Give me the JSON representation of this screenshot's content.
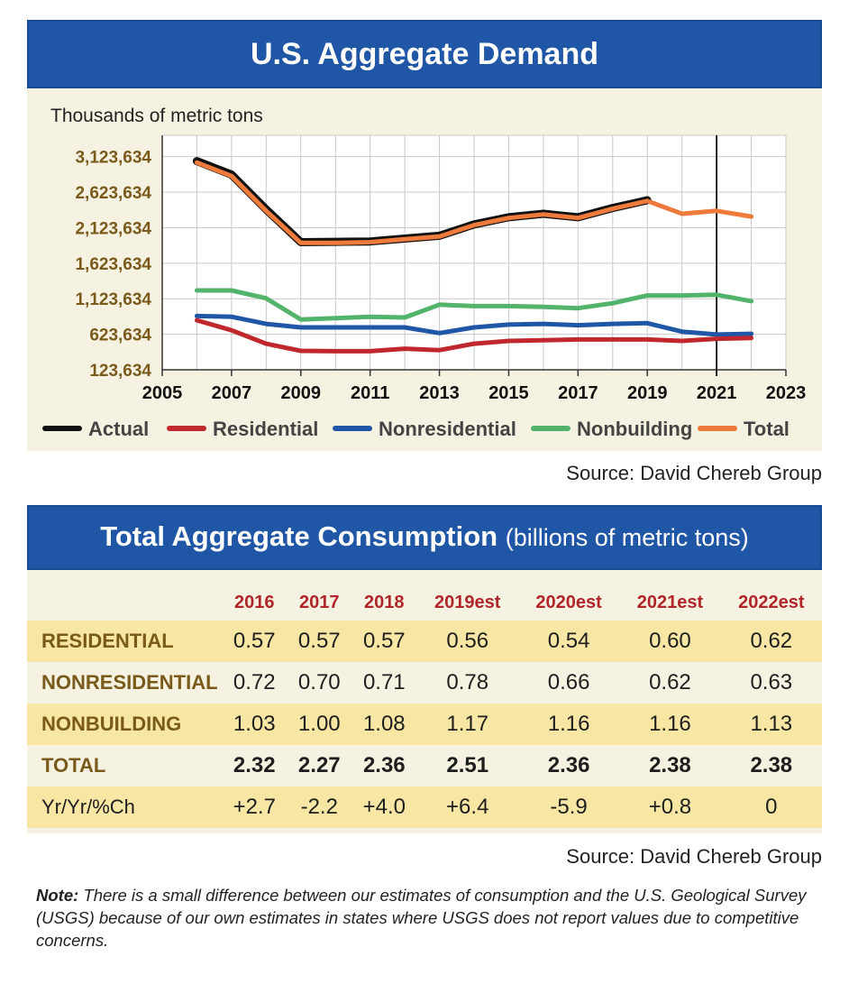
{
  "chart_title": "U.S. Aggregate Demand",
  "chart_data": {
    "type": "line",
    "title": "U.S. Aggregate Demand",
    "ylabel": "Thousands of metric tons",
    "xlabel": "",
    "xlim": [
      2005,
      2023
    ],
    "ylim": [
      123634,
      3423634
    ],
    "x_ticks": [
      "2005",
      "2007",
      "2009",
      "2011",
      "2013",
      "2015",
      "2017",
      "2019",
      "2021",
      "2023"
    ],
    "y_ticks": [
      "123,634",
      "623,634",
      "1,123,634",
      "1,623,634",
      "2,123,634",
      "2,623,634",
      "3,123,634"
    ],
    "x": [
      2006,
      2007,
      2008,
      2009,
      2010,
      2011,
      2012,
      2013,
      2014,
      2015,
      2016,
      2017,
      2018,
      2019,
      2020,
      2021,
      2022
    ],
    "series": [
      {
        "name": "Actual",
        "color": "#111111",
        "values": [
          3060000,
          2870000,
          2380000,
          1920000,
          1925000,
          1930000,
          1970000,
          2010000,
          2170000,
          2270000,
          2320000,
          2270000,
          2400000,
          2510000,
          null,
          null,
          null
        ]
      },
      {
        "name": "Residential",
        "color": "#c0282d",
        "values": [
          820000,
          680000,
          490000,
          390000,
          385000,
          385000,
          420000,
          400000,
          490000,
          530000,
          540000,
          550000,
          550000,
          550000,
          530000,
          560000,
          570000
        ]
      },
      {
        "name": "Nonresidential",
        "color": "#1f56a6",
        "values": [
          880000,
          870000,
          770000,
          720000,
          720000,
          720000,
          720000,
          640000,
          720000,
          760000,
          770000,
          750000,
          770000,
          780000,
          660000,
          620000,
          630000
        ]
      },
      {
        "name": "Nonbuilding",
        "color": "#52b36b",
        "values": [
          1240000,
          1240000,
          1130000,
          830000,
          850000,
          870000,
          860000,
          1040000,
          1020000,
          1020000,
          1010000,
          990000,
          1060000,
          1170000,
          1170000,
          1180000,
          1090000
        ]
      },
      {
        "name": "Total",
        "color": "#ee7a3b",
        "values": [
          3040000,
          2850000,
          2360000,
          1910000,
          1910000,
          1920000,
          1960000,
          2000000,
          2160000,
          2260000,
          2310000,
          2260000,
          2390000,
          2500000,
          2320000,
          2360000,
          2280000
        ]
      }
    ],
    "annotations": [
      "vertical reference line at 2021"
    ],
    "grid": true,
    "legend": "bottom"
  },
  "source_chart": "Source: David Chereb Group",
  "table_title": "Total Aggregate Consumption",
  "table_subtitle": "(billions of metric tons)",
  "table": {
    "columns": [
      "2016",
      "2017",
      "2018",
      "2019est",
      "2020est",
      "2021est",
      "2022est"
    ],
    "rows": [
      {
        "label": "RESIDENTIAL",
        "values": [
          "0.57",
          "0.57",
          "0.57",
          "0.56",
          "0.54",
          "0.60",
          "0.62"
        ]
      },
      {
        "label": "NONRESIDENTIAL",
        "values": [
          "0.72",
          "0.70",
          "0.71",
          "0.78",
          "0.66",
          "0.62",
          "0.63"
        ]
      },
      {
        "label": "NONBUILDING",
        "values": [
          "1.03",
          "1.00",
          "1.08",
          "1.17",
          "1.16",
          "1.16",
          "1.13"
        ]
      },
      {
        "label": "TOTAL",
        "values": [
          "2.32",
          "2.27",
          "2.36",
          "2.51",
          "2.36",
          "2.38",
          "2.38"
        ]
      },
      {
        "label": "Yr/Yr/%Ch",
        "values": [
          "+2.7",
          "-2.2",
          "+4.0",
          "+6.4",
          "-5.9",
          "+0.8",
          "0"
        ]
      }
    ]
  },
  "source_table": "Source: David Chereb Group",
  "note_label": "Note:",
  "note_text": " There is a small difference between our estimates of consumption and the U.S. Geological Survey (USGS) because of our own estimates in states where USGS does not report values due to competitive concerns."
}
